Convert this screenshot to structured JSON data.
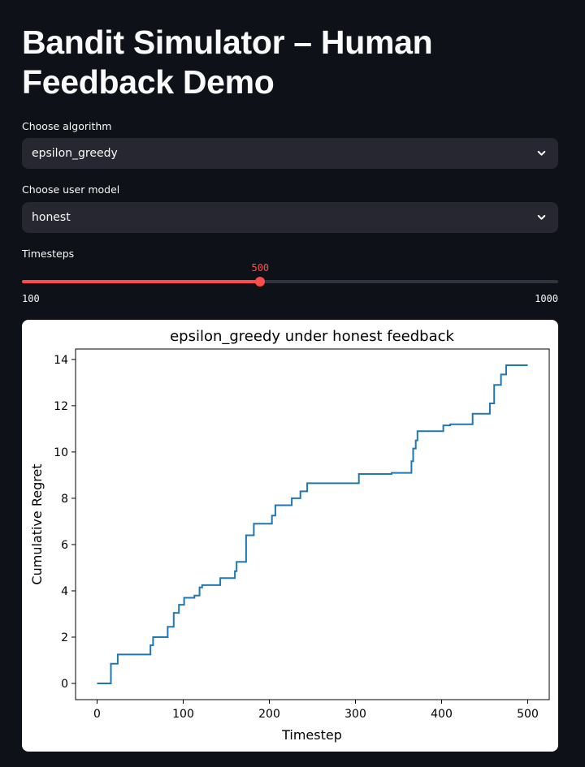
{
  "header": {
    "title": "Bandit Simulator – Human Feedback Demo"
  },
  "algorithm_select": {
    "label": "Choose algorithm",
    "value": "epsilon_greedy",
    "icon": "chevron-down-icon"
  },
  "user_model_select": {
    "label": "Choose user model",
    "value": "honest",
    "icon": "chevron-down-icon"
  },
  "timesteps_slider": {
    "label": "Timesteps",
    "value": 500,
    "value_text": "500",
    "min": 100,
    "max": 1000,
    "min_text": "100",
    "max_text": "1000",
    "accent": "#ff4b4b"
  },
  "chart_data": {
    "type": "line",
    "title": "epsilon_greedy under honest feedback",
    "xlabel": "Timestep",
    "ylabel": "Cumulative Regret",
    "xlim": [
      -25,
      525
    ],
    "ylim": [
      -0.7,
      14.45
    ],
    "xticks": [
      0,
      100,
      200,
      300,
      400,
      500
    ],
    "xtick_labels": [
      "0",
      "100",
      "200",
      "300",
      "400",
      "500"
    ],
    "yticks": [
      0,
      2,
      4,
      6,
      8,
      10,
      12,
      14
    ],
    "ytick_labels": [
      "0",
      "2",
      "4",
      "6",
      "8",
      "10",
      "12",
      "14"
    ],
    "grid": false,
    "series": [
      {
        "color": "#1f77b4",
        "step": true,
        "points": [
          [
            0,
            0
          ],
          [
            16,
            0.85
          ],
          [
            24,
            1.25
          ],
          [
            62,
            1.65
          ],
          [
            65,
            2.0
          ],
          [
            82,
            2.45
          ],
          [
            89,
            3.05
          ],
          [
            95,
            3.4
          ],
          [
            101,
            3.7
          ],
          [
            113,
            3.8
          ],
          [
            119,
            4.15
          ],
          [
            122,
            4.25
          ],
          [
            143,
            4.55
          ],
          [
            160,
            4.85
          ],
          [
            162,
            5.25
          ],
          [
            173,
            6.4
          ],
          [
            182,
            6.9
          ],
          [
            203,
            7.25
          ],
          [
            207,
            7.7
          ],
          [
            226,
            8.0
          ],
          [
            236,
            8.3
          ],
          [
            244,
            8.65
          ],
          [
            304,
            9.05
          ],
          [
            342,
            9.1
          ],
          [
            365,
            9.6
          ],
          [
            367,
            10.15
          ],
          [
            370,
            10.5
          ],
          [
            372,
            10.9
          ],
          [
            402,
            11.15
          ],
          [
            410,
            11.2
          ],
          [
            436,
            11.65
          ],
          [
            456,
            12.1
          ],
          [
            461,
            12.9
          ],
          [
            469,
            13.35
          ],
          [
            475,
            13.75
          ],
          [
            500,
            13.75
          ]
        ]
      }
    ]
  }
}
